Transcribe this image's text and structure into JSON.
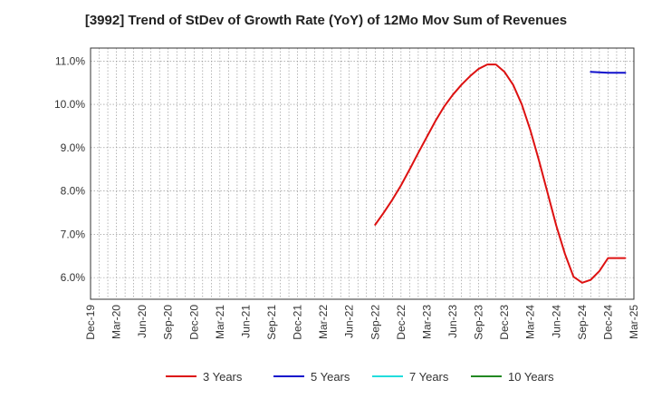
{
  "chart_data": {
    "type": "line",
    "title": "[3992]  Trend of StDev of Growth Rate (YoY) of 12Mo Mov Sum of Revenues",
    "xlabel": "",
    "ylabel": "",
    "x_ticks": [
      "Dec-19",
      "Mar-20",
      "Jun-20",
      "Sep-20",
      "Dec-20",
      "Mar-21",
      "Jun-21",
      "Sep-21",
      "Dec-21",
      "Mar-22",
      "Jun-22",
      "Sep-22",
      "Dec-22",
      "Mar-23",
      "Jun-23",
      "Sep-23",
      "Dec-23",
      "Mar-24",
      "Jun-24",
      "Sep-24",
      "Dec-24",
      "Mar-25"
    ],
    "y_ticks": [
      6.0,
      7.0,
      8.0,
      9.0,
      10.0,
      11.0
    ],
    "y_tick_format": "%",
    "ylim": [
      5.5,
      11.3
    ],
    "x_range_months": [
      0,
      63
    ],
    "grid": true,
    "legend_position": "bottom",
    "series": [
      {
        "name": "3 Years",
        "color": "#dd1111",
        "x_months": [
          33,
          34,
          35,
          36,
          37,
          38,
          39,
          40,
          41,
          42,
          43,
          44,
          45,
          46,
          47,
          48,
          49,
          50,
          51,
          52,
          53,
          54,
          55,
          56,
          57,
          58,
          59,
          60,
          61,
          62
        ],
        "values": [
          7.22,
          7.5,
          7.8,
          8.13,
          8.5,
          8.88,
          9.25,
          9.62,
          9.95,
          10.22,
          10.45,
          10.65,
          10.82,
          10.92,
          10.92,
          10.75,
          10.45,
          10.0,
          9.4,
          8.7,
          7.95,
          7.2,
          6.55,
          6.02,
          5.88,
          5.95,
          6.15,
          6.45,
          6.45,
          6.45
        ]
      },
      {
        "name": "5 Years",
        "color": "#1111cc",
        "x_months": [
          58,
          59,
          60,
          61,
          62
        ],
        "values": [
          10.75,
          10.74,
          10.73,
          10.73,
          10.73
        ]
      },
      {
        "name": "7 Years",
        "color": "#22dddd",
        "x_months": [],
        "values": []
      },
      {
        "name": "10 Years",
        "color": "#228822",
        "x_months": [],
        "values": []
      }
    ]
  }
}
